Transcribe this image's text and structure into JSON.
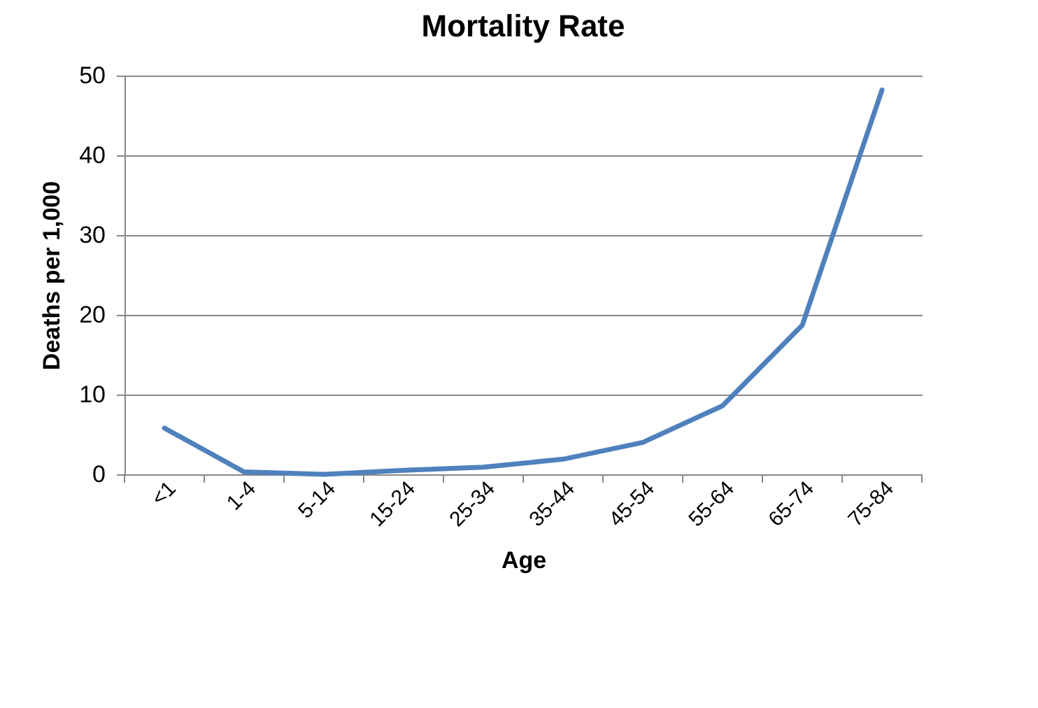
{
  "chart_data": {
    "type": "line",
    "title": "Mortality Rate",
    "xlabel": "Age",
    "ylabel": "Deaths per 1,000",
    "categories": [
      "<1",
      "1-4",
      "5-14",
      "15-24",
      "25-34",
      "35-44",
      "45-54",
      "55-64",
      "65-74",
      "75-84"
    ],
    "series": [
      {
        "color": "#4f81bd",
        "values": [
          5.8,
          0.3,
          0,
          0.5,
          0.9,
          1.9,
          4.0,
          8.6,
          18.7,
          48.2
        ]
      }
    ],
    "ylim": [
      0,
      50
    ],
    "yticks": [
      0,
      10,
      20,
      30,
      40,
      50
    ],
    "grid": "y",
    "legend": false,
    "marker": "none",
    "line_style": "solid"
  }
}
